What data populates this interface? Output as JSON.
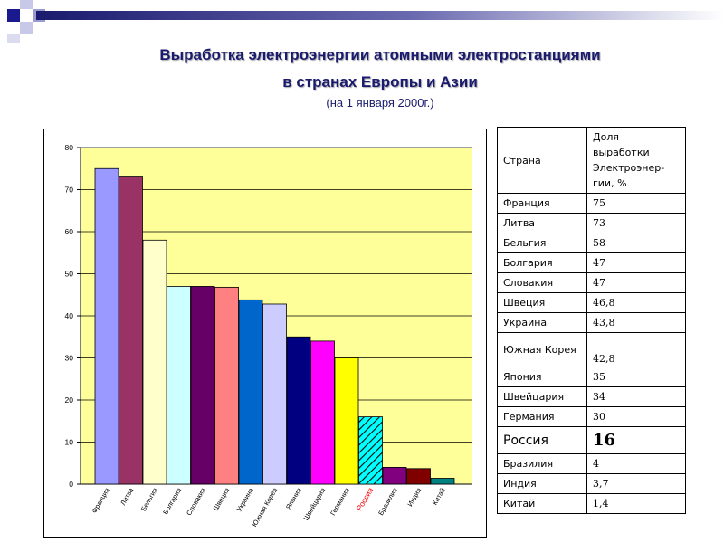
{
  "title": {
    "line1": "Выработка электроэнергии атомными электростанциями",
    "line2": "в странах Европы и Азии",
    "subtitle": "(на 1 января 2000г.)"
  },
  "chart_data": {
    "type": "bar",
    "categories": [
      "Франция",
      "Литва",
      "Бельгия",
      "Болгария",
      "Словакия",
      "Швеция",
      "Украина",
      "Южная Корея",
      "Япония",
      "Швейцария",
      "Германия",
      "Россия",
      "Бразилия",
      "Индия",
      "Китай"
    ],
    "values": [
      75,
      73,
      58,
      47,
      47,
      46.8,
      43.8,
      42.8,
      35,
      34,
      30,
      16,
      4,
      3.7,
      1.4
    ],
    "colors": [
      "#9999ff",
      "#993366",
      "#ffffcc",
      "#ccffff",
      "#660066",
      "#ff8080",
      "#0066cc",
      "#ccccff",
      "#000080",
      "#ff00ff",
      "#ffff00",
      "#00ffff",
      "#800080",
      "#800000",
      "#008080"
    ],
    "highlight_category": "Россия",
    "highlight_color": "#ff0000",
    "ylim": [
      0,
      80
    ],
    "yticks": [
      0,
      10,
      20,
      30,
      40,
      50,
      60,
      70,
      80
    ],
    "plot_background": "#ffff99",
    "grid": true,
    "legend": "none",
    "title": "",
    "xlabel": "",
    "ylabel": ""
  },
  "table": {
    "header": {
      "country": "Страна",
      "share": [
        "Доля",
        "выработки",
        "Электроэнер-",
        "гии, %"
      ]
    },
    "rows": [
      {
        "country": "Франция",
        "share": "75"
      },
      {
        "country": "Литва",
        "share": "73"
      },
      {
        "country": "Бельгия",
        "share": "58"
      },
      {
        "country": "Болгария",
        "share": "47"
      },
      {
        "country": "Словакия",
        "share": "47"
      },
      {
        "country": "Швеция",
        "share": "46,8"
      },
      {
        "country": "Украина",
        "share": "43,8"
      },
      {
        "country": "Южная Корея",
        "share": "42,8"
      },
      {
        "country": "Япония",
        "share": "35"
      },
      {
        "country": "Швейцария",
        "share": "34"
      },
      {
        "country": "Германия",
        "share": "30"
      },
      {
        "country": "Россия",
        "share": "16"
      },
      {
        "country": "Бразилия",
        "share": "4"
      },
      {
        "country": "Индия",
        "share": "3,7"
      },
      {
        "country": "Китай",
        "share": "1,4"
      }
    ]
  }
}
